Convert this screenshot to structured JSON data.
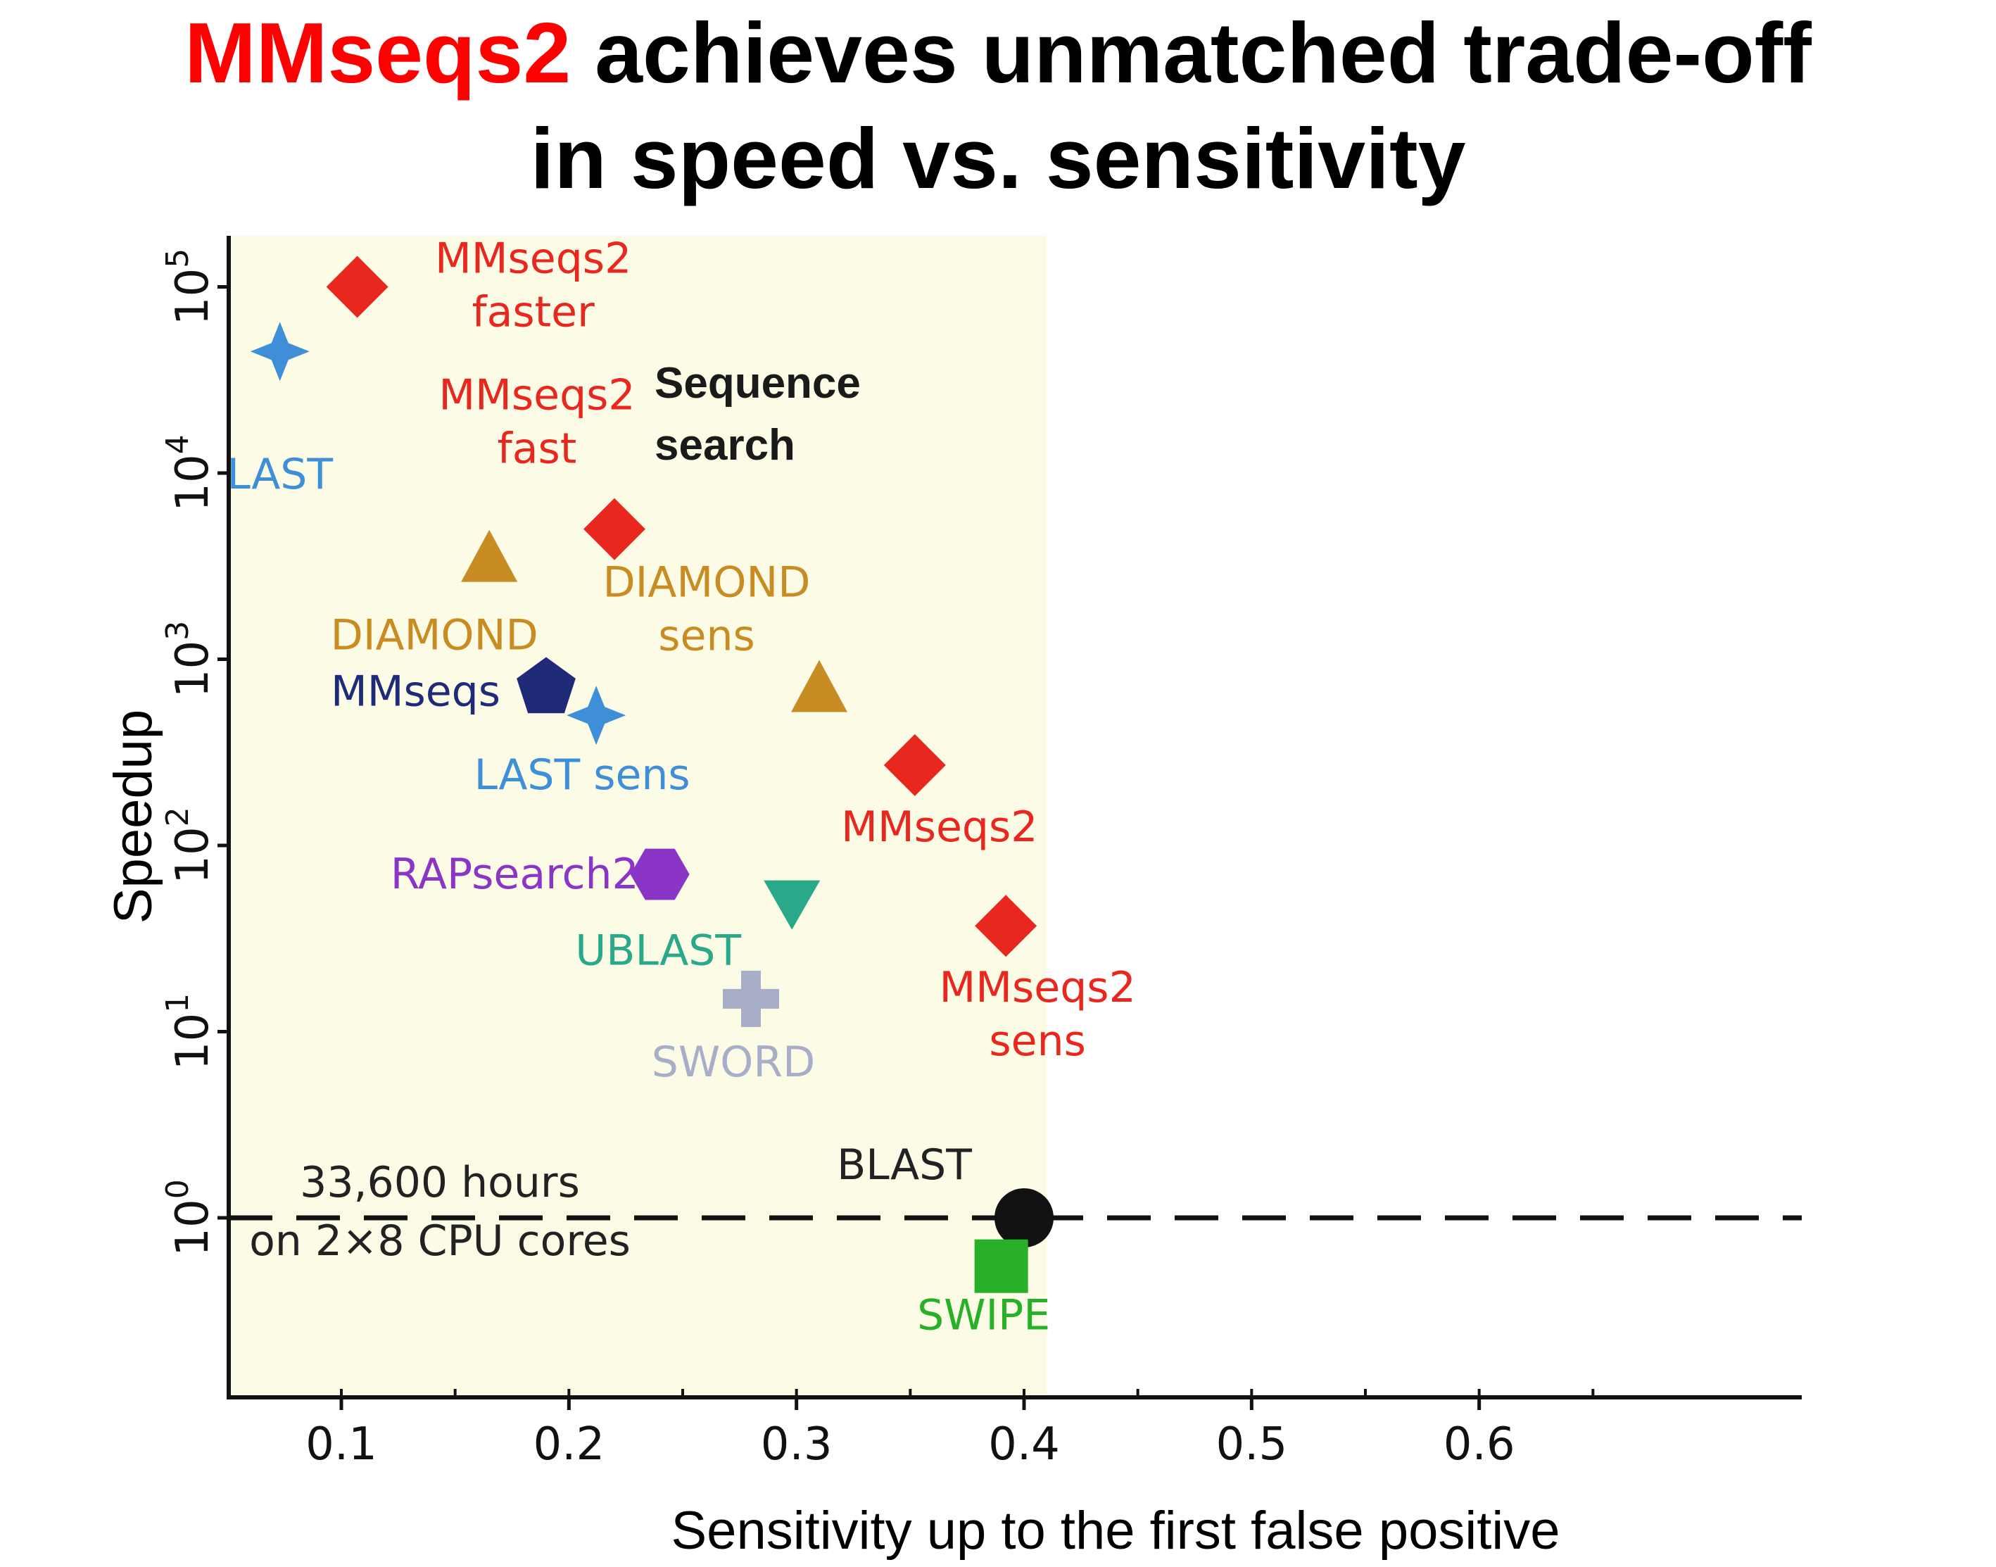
{
  "title": {
    "highlight": "MMseqs2",
    "line1_rest": " achieves unmatched trade-off",
    "line2": "in speed vs. sensitivity"
  },
  "colors": {
    "highlight": "#ff0000",
    "mmseqs2": "#e8281e",
    "last": "#3f8fd8",
    "diamond": "#c98c22",
    "mmseqs": "#1f2a78",
    "rapsearch2": "#8b35c6",
    "ublast": "#2aa88a",
    "sword": "#a8aec8",
    "blast": "#111111",
    "swipe": "#28b028",
    "region_fill": "#fbfbe6"
  },
  "chart_data": {
    "type": "scatter",
    "xlabel": "Sensitivity up to the first false positive",
    "ylabel": "Speedup",
    "xlim": [
      0.05,
      0.75
    ],
    "ylim_log10": [
      -1,
      0.3
    ],
    "y_scale": "log10",
    "x_ticks": [
      "0.1",
      "0.2",
      "0.3",
      "0.4",
      "0.5",
      "0.6"
    ],
    "y_ticks": [
      {
        "base": "10",
        "exp": "0"
      },
      {
        "base": "10",
        "exp": "1"
      },
      {
        "base": "10",
        "exp": "2"
      },
      {
        "base": "10",
        "exp": "3"
      },
      {
        "base": "10",
        "exp": "4"
      },
      {
        "base": "10",
        "exp": "5"
      }
    ],
    "shaded_region_x_max": 0.41,
    "region_label": [
      "Sequence",
      "search"
    ],
    "reference_line": {
      "y": 1,
      "style": "dashed",
      "label": [
        "33,600 hours",
        "on 2×8 CPU cores"
      ]
    },
    "points": [
      {
        "name": "MMseqs2 faster",
        "label_lines": [
          "MMseqs2",
          "faster"
        ],
        "x": 0.107,
        "y": 100000,
        "marker": "diamond",
        "color": "#e8281e"
      },
      {
        "name": "LAST",
        "label_lines": [
          "LAST"
        ],
        "x": 0.073,
        "y": 45000,
        "marker": "star4",
        "color": "#3f8fd8"
      },
      {
        "name": "MMseqs2 fast",
        "label_lines": [
          "MMseqs2",
          "fast"
        ],
        "x": 0.22,
        "y": 5000,
        "marker": "diamond",
        "color": "#e8281e"
      },
      {
        "name": "DIAMOND",
        "label_lines": [
          "DIAMOND"
        ],
        "x": 0.165,
        "y": 3500,
        "marker": "triangle",
        "color": "#c98c22"
      },
      {
        "name": "DIAMOND sens",
        "label_lines": [
          "DIAMOND",
          "sens"
        ],
        "x": 0.31,
        "y": 700,
        "marker": "triangle",
        "color": "#c98c22"
      },
      {
        "name": "MMseqs",
        "label_lines": [
          "MMseqs"
        ],
        "x": 0.19,
        "y": 700,
        "marker": "pentagon",
        "color": "#1f2a78"
      },
      {
        "name": "LAST sens",
        "label_lines": [
          "LAST sens"
        ],
        "x": 0.212,
        "y": 500,
        "marker": "star4",
        "color": "#3f8fd8"
      },
      {
        "name": "MMseqs2",
        "label_lines": [
          "MMseqs2"
        ],
        "x": 0.352,
        "y": 270,
        "marker": "diamond",
        "color": "#e8281e"
      },
      {
        "name": "RAPsearch2",
        "label_lines": [
          "RAPsearch2"
        ],
        "x": 0.24,
        "y": 70,
        "marker": "hexagon",
        "color": "#8b35c6"
      },
      {
        "name": "UBLAST",
        "label_lines": [
          "UBLAST"
        ],
        "x": 0.298,
        "y": 50,
        "marker": "triangle-down",
        "color": "#2aa88a"
      },
      {
        "name": "MMseqs2 sens",
        "label_lines": [
          "MMseqs2",
          "sens"
        ],
        "x": 0.392,
        "y": 37,
        "marker": "diamond",
        "color": "#e8281e"
      },
      {
        "name": "SWORD",
        "label_lines": [
          "SWORD"
        ],
        "x": 0.28,
        "y": 15,
        "marker": "cross",
        "color": "#a8aec8"
      },
      {
        "name": "BLAST",
        "label_lines": [
          "BLAST"
        ],
        "x": 0.4,
        "y": 1,
        "marker": "circle",
        "color": "#111111"
      },
      {
        "name": "SWIPE",
        "label_lines": [
          "SWIPE"
        ],
        "x": 0.39,
        "y": 0.55,
        "marker": "square",
        "color": "#28b028"
      }
    ],
    "grid": false,
    "legend": "none"
  }
}
